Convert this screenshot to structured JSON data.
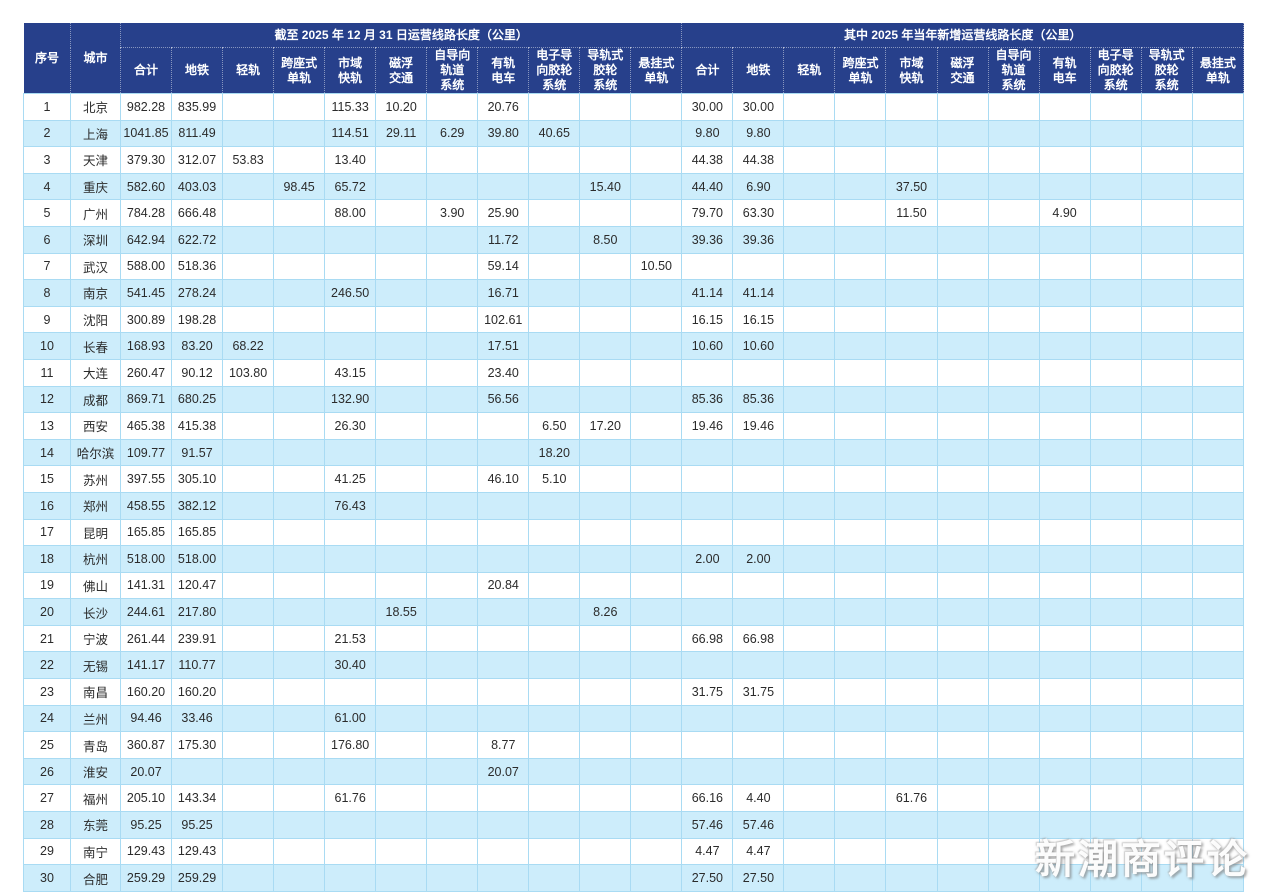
{
  "table": {
    "headers": {
      "index": "序号",
      "city": "城市",
      "group1_title": "截至 2025 年 12 月 31 日运营线路长度（公里）",
      "group2_title": "其中 2025 年当年新增运营线路长度（公里）",
      "subcols": [
        "合计",
        "地铁",
        "轻轨",
        "跨座式\n单轨",
        "市域\n快轨",
        "磁浮\n交通",
        "自导向\n轨道\n系统",
        "有轨\n电车",
        "电子导\n向胶轮\n系统",
        "导轨式\n胶轮\n系统",
        "悬挂式\n单轨"
      ]
    },
    "rows": [
      {
        "no": "1",
        "city": "北京",
        "g1": [
          "982.28",
          "835.99",
          "",
          "",
          "115.33",
          "10.20",
          "",
          "20.76",
          "",
          "",
          ""
        ],
        "g2": [
          "30.00",
          "30.00",
          "",
          "",
          "",
          "",
          "",
          "",
          "",
          "",
          ""
        ]
      },
      {
        "no": "2",
        "city": "上海",
        "g1": [
          "1041.85",
          "811.49",
          "",
          "",
          "114.51",
          "29.11",
          "6.29",
          "39.80",
          "40.65",
          "",
          ""
        ],
        "g2": [
          "9.80",
          "9.80",
          "",
          "",
          "",
          "",
          "",
          "",
          "",
          "",
          ""
        ]
      },
      {
        "no": "3",
        "city": "天津",
        "g1": [
          "379.30",
          "312.07",
          "53.83",
          "",
          "13.40",
          "",
          "",
          "",
          "",
          "",
          ""
        ],
        "g2": [
          "44.38",
          "44.38",
          "",
          "",
          "",
          "",
          "",
          "",
          "",
          "",
          ""
        ]
      },
      {
        "no": "4",
        "city": "重庆",
        "g1": [
          "582.60",
          "403.03",
          "",
          "98.45",
          "65.72",
          "",
          "",
          "",
          "",
          "15.40",
          ""
        ],
        "g2": [
          "44.40",
          "6.90",
          "",
          "",
          "37.50",
          "",
          "",
          "",
          "",
          "",
          ""
        ]
      },
      {
        "no": "5",
        "city": "广州",
        "g1": [
          "784.28",
          "666.48",
          "",
          "",
          "88.00",
          "",
          "3.90",
          "25.90",
          "",
          "",
          ""
        ],
        "g2": [
          "79.70",
          "63.30",
          "",
          "",
          "11.50",
          "",
          "",
          "4.90",
          "",
          "",
          ""
        ]
      },
      {
        "no": "6",
        "city": "深圳",
        "g1": [
          "642.94",
          "622.72",
          "",
          "",
          "",
          "",
          "",
          "11.72",
          "",
          "8.50",
          ""
        ],
        "g2": [
          "39.36",
          "39.36",
          "",
          "",
          "",
          "",
          "",
          "",
          "",
          "",
          ""
        ]
      },
      {
        "no": "7",
        "city": "武汉",
        "g1": [
          "588.00",
          "518.36",
          "",
          "",
          "",
          "",
          "",
          "59.14",
          "",
          "",
          "10.50"
        ],
        "g2": [
          "",
          "",
          "",
          "",
          "",
          "",
          "",
          "",
          "",
          "",
          ""
        ]
      },
      {
        "no": "8",
        "city": "南京",
        "g1": [
          "541.45",
          "278.24",
          "",
          "",
          "246.50",
          "",
          "",
          "16.71",
          "",
          "",
          ""
        ],
        "g2": [
          "41.14",
          "41.14",
          "",
          "",
          "",
          "",
          "",
          "",
          "",
          "",
          ""
        ]
      },
      {
        "no": "9",
        "city": "沈阳",
        "g1": [
          "300.89",
          "198.28",
          "",
          "",
          "",
          "",
          "",
          "102.61",
          "",
          "",
          ""
        ],
        "g2": [
          "16.15",
          "16.15",
          "",
          "",
          "",
          "",
          "",
          "",
          "",
          "",
          ""
        ]
      },
      {
        "no": "10",
        "city": "长春",
        "g1": [
          "168.93",
          "83.20",
          "68.22",
          "",
          "",
          "",
          "",
          "17.51",
          "",
          "",
          ""
        ],
        "g2": [
          "10.60",
          "10.60",
          "",
          "",
          "",
          "",
          "",
          "",
          "",
          "",
          ""
        ]
      },
      {
        "no": "11",
        "city": "大连",
        "g1": [
          "260.47",
          "90.12",
          "103.80",
          "",
          "43.15",
          "",
          "",
          "23.40",
          "",
          "",
          ""
        ],
        "g2": [
          "",
          "",
          "",
          "",
          "",
          "",
          "",
          "",
          "",
          "",
          ""
        ]
      },
      {
        "no": "12",
        "city": "成都",
        "g1": [
          "869.71",
          "680.25",
          "",
          "",
          "132.90",
          "",
          "",
          "56.56",
          "",
          "",
          ""
        ],
        "g2": [
          "85.36",
          "85.36",
          "",
          "",
          "",
          "",
          "",
          "",
          "",
          "",
          ""
        ]
      },
      {
        "no": "13",
        "city": "西安",
        "g1": [
          "465.38",
          "415.38",
          "",
          "",
          "26.30",
          "",
          "",
          "",
          "6.50",
          "17.20",
          ""
        ],
        "g2": [
          "19.46",
          "19.46",
          "",
          "",
          "",
          "",
          "",
          "",
          "",
          "",
          ""
        ]
      },
      {
        "no": "14",
        "city": "哈尔滨",
        "g1": [
          "109.77",
          "91.57",
          "",
          "",
          "",
          "",
          "",
          "",
          "18.20",
          "",
          ""
        ],
        "g2": [
          "",
          "",
          "",
          "",
          "",
          "",
          "",
          "",
          "",
          "",
          ""
        ]
      },
      {
        "no": "15",
        "city": "苏州",
        "g1": [
          "397.55",
          "305.10",
          "",
          "",
          "41.25",
          "",
          "",
          "46.10",
          "5.10",
          "",
          ""
        ],
        "g2": [
          "",
          "",
          "",
          "",
          "",
          "",
          "",
          "",
          "",
          "",
          ""
        ]
      },
      {
        "no": "16",
        "city": "郑州",
        "g1": [
          "458.55",
          "382.12",
          "",
          "",
          "76.43",
          "",
          "",
          "",
          "",
          "",
          ""
        ],
        "g2": [
          "",
          "",
          "",
          "",
          "",
          "",
          "",
          "",
          "",
          "",
          ""
        ]
      },
      {
        "no": "17",
        "city": "昆明",
        "g1": [
          "165.85",
          "165.85",
          "",
          "",
          "",
          "",
          "",
          "",
          "",
          "",
          ""
        ],
        "g2": [
          "",
          "",
          "",
          "",
          "",
          "",
          "",
          "",
          "",
          "",
          ""
        ]
      },
      {
        "no": "18",
        "city": "杭州",
        "g1": [
          "518.00",
          "518.00",
          "",
          "",
          "",
          "",
          "",
          "",
          "",
          "",
          ""
        ],
        "g2": [
          "2.00",
          "2.00",
          "",
          "",
          "",
          "",
          "",
          "",
          "",
          "",
          ""
        ]
      },
      {
        "no": "19",
        "city": "佛山",
        "g1": [
          "141.31",
          "120.47",
          "",
          "",
          "",
          "",
          "",
          "20.84",
          "",
          "",
          ""
        ],
        "g2": [
          "",
          "",
          "",
          "",
          "",
          "",
          "",
          "",
          "",
          "",
          ""
        ]
      },
      {
        "no": "20",
        "city": "长沙",
        "g1": [
          "244.61",
          "217.80",
          "",
          "",
          "",
          "18.55",
          "",
          "",
          "",
          "8.26",
          ""
        ],
        "g2": [
          "",
          "",
          "",
          "",
          "",
          "",
          "",
          "",
          "",
          "",
          ""
        ]
      },
      {
        "no": "21",
        "city": "宁波",
        "g1": [
          "261.44",
          "239.91",
          "",
          "",
          "21.53",
          "",
          "",
          "",
          "",
          "",
          ""
        ],
        "g2": [
          "66.98",
          "66.98",
          "",
          "",
          "",
          "",
          "",
          "",
          "",
          "",
          ""
        ]
      },
      {
        "no": "22",
        "city": "无锡",
        "g1": [
          "141.17",
          "110.77",
          "",
          "",
          "30.40",
          "",
          "",
          "",
          "",
          "",
          ""
        ],
        "g2": [
          "",
          "",
          "",
          "",
          "",
          "",
          "",
          "",
          "",
          "",
          ""
        ]
      },
      {
        "no": "23",
        "city": "南昌",
        "g1": [
          "160.20",
          "160.20",
          "",
          "",
          "",
          "",
          "",
          "",
          "",
          "",
          ""
        ],
        "g2": [
          "31.75",
          "31.75",
          "",
          "",
          "",
          "",
          "",
          "",
          "",
          "",
          ""
        ]
      },
      {
        "no": "24",
        "city": "兰州",
        "g1": [
          "94.46",
          "33.46",
          "",
          "",
          "61.00",
          "",
          "",
          "",
          "",
          "",
          ""
        ],
        "g2": [
          "",
          "",
          "",
          "",
          "",
          "",
          "",
          "",
          "",
          "",
          ""
        ]
      },
      {
        "no": "25",
        "city": "青岛",
        "g1": [
          "360.87",
          "175.30",
          "",
          "",
          "176.80",
          "",
          "",
          "8.77",
          "",
          "",
          ""
        ],
        "g2": [
          "",
          "",
          "",
          "",
          "",
          "",
          "",
          "",
          "",
          "",
          ""
        ]
      },
      {
        "no": "26",
        "city": "淮安",
        "g1": [
          "20.07",
          "",
          "",
          "",
          "",
          "",
          "",
          "20.07",
          "",
          "",
          ""
        ],
        "g2": [
          "",
          "",
          "",
          "",
          "",
          "",
          "",
          "",
          "",
          "",
          ""
        ]
      },
      {
        "no": "27",
        "city": "福州",
        "g1": [
          "205.10",
          "143.34",
          "",
          "",
          "61.76",
          "",
          "",
          "",
          "",
          "",
          ""
        ],
        "g2": [
          "66.16",
          "4.40",
          "",
          "",
          "61.76",
          "",
          "",
          "",
          "",
          "",
          ""
        ]
      },
      {
        "no": "28",
        "city": "东莞",
        "g1": [
          "95.25",
          "95.25",
          "",
          "",
          "",
          "",
          "",
          "",
          "",
          "",
          ""
        ],
        "g2": [
          "57.46",
          "57.46",
          "",
          "",
          "",
          "",
          "",
          "",
          "",
          "",
          ""
        ]
      },
      {
        "no": "29",
        "city": "南宁",
        "g1": [
          "129.43",
          "129.43",
          "",
          "",
          "",
          "",
          "",
          "",
          "",
          "",
          ""
        ],
        "g2": [
          "4.47",
          "4.47",
          "",
          "",
          "",
          "",
          "",
          "",
          "",
          "",
          ""
        ]
      },
      {
        "no": "30",
        "city": "合肥",
        "g1": [
          "259.29",
          "259.29",
          "",
          "",
          "",
          "",
          "",
          "",
          "",
          "",
          ""
        ],
        "g2": [
          "27.50",
          "27.50",
          "",
          "",
          "",
          "",
          "",
          "",
          "",
          "",
          ""
        ]
      }
    ]
  },
  "watermark": "新潮商评论",
  "colors": {
    "header_bg": "#27408b",
    "header_text": "#ffffff",
    "row_alt_bg": "#cdedfb",
    "grid_border": "#a9dbf3",
    "data_text": "#2b2b2b"
  }
}
